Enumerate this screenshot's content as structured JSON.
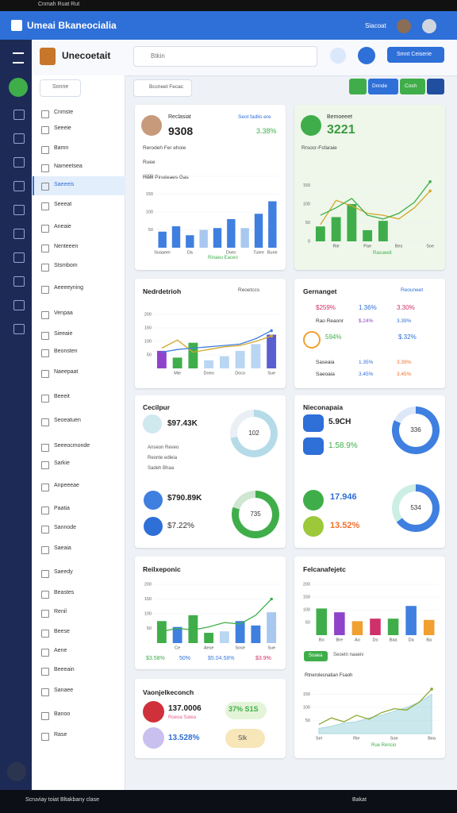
{
  "os_bar": {
    "title": "Cnmah Ruat Rut"
  },
  "app_header": {
    "title": "Umeai Bkaneocialia",
    "user": "Siacoat"
  },
  "toolbar": {
    "brand": "Unecoetait",
    "search": "Btkin",
    "button": "Smnt Ceiserie"
  },
  "sidebar": {
    "search": "Sonne",
    "items": [
      "Cnmste",
      "Seeeie",
      "Bamn",
      "Nameetsea",
      "Saeeeis",
      "Seeeat",
      "Aneaie",
      "Nenteeen",
      "Stsmbom",
      "Aeeeeyning",
      "Venpaa",
      "Sieeaie",
      "Beonsten",
      "Naeepaat",
      "Beeeit",
      "Seoeatuen",
      "Seeeocmonde",
      "Sarkie",
      "Anpeeeae",
      "Paatia",
      "Sannode",
      "Saeaia",
      "Saeedy",
      "Beastes",
      "Renil",
      "Beese",
      "Aene",
      "Beeeain",
      "Sanaee",
      "Banoo",
      "Rase"
    ]
  },
  "filter": "Bccrieet Fecac",
  "actions": [
    "Dnnde",
    "Cosh"
  ],
  "cards": [
    {
      "title": "Reclasiat",
      "link": "Seot fadlis ere",
      "value": "9308",
      "change": "3.38%",
      "subtitle": "Rerodeh Fer ehoie",
      "label": "Ruee",
      "chart": {
        "type": "bar",
        "title": "Ruei Pinuteaes Gas",
        "note": "Rinaeu Eaceo",
        "categories": [
          "Soaaeer",
          null,
          "Da",
          null,
          null,
          "Doec",
          null,
          "Tuiee",
          "Bune"
        ],
        "ylim": [
          0,
          200
        ],
        "yticks": [
          50,
          100,
          150,
          200
        ],
        "series": [
          {
            "type": "bar",
            "colors": [
              "#3f7fe0",
              "#3f7fe0",
              "#3f7fe0",
              "#a9c8f0",
              "#3f7fe0",
              "#3f7fe0",
              "#a9c8f0",
              "#3f7fe0",
              "#3f7fe0"
            ],
            "values": [
              45,
              60,
              35,
              50,
              55,
              80,
              55,
              95,
              130
            ]
          }
        ]
      }
    },
    {
      "title": "Bemoeeet",
      "value": "3221",
      "subtitle": "Rrsocr-Fsfaraie",
      "chart": {
        "type": "bar",
        "note": "Rasueeit",
        "categories": [
          null,
          "Rie",
          null,
          "Pae",
          null,
          "Bes",
          null,
          "Soe"
        ],
        "ylim": [
          0,
          200
        ],
        "yticks": [
          0,
          50,
          100,
          150
        ],
        "series": [
          {
            "type": "bar",
            "color": "#3fae4a",
            "values": [
              40,
              65,
              100,
              30,
              55,
              null,
              null,
              null
            ]
          },
          {
            "type": "line",
            "color": "#d4a72c",
            "values": [
              45,
              110,
              95,
              75,
              70,
              60,
              90,
              135
            ]
          },
          {
            "type": "line",
            "color": "#3fae4a",
            "values": [
              70,
              90,
              115,
              70,
              60,
              75,
              105,
              160
            ]
          }
        ]
      }
    },
    {
      "title": "Nedrdetrioh",
      "subtitle": "Reoetccs",
      "chart": {
        "type": "bar",
        "categories": [
          null,
          "Mie",
          null,
          "Doeo",
          null,
          "Doco",
          null,
          "Sue"
        ],
        "ylim": [
          0,
          200
        ],
        "yticks": [
          50,
          100,
          150,
          200
        ],
        "series": [
          {
            "type": "bar",
            "colors": [
              "#8e44c9",
              "#3fae4a",
              "#3fae4a",
              "#b9d6f2",
              "#b9d6f2",
              "#b9d6f2",
              "#b9d6f2",
              "#5a5fd0"
            ],
            "values": [
              65,
              40,
              95,
              30,
              45,
              65,
              90,
              125
            ]
          },
          {
            "type": "line",
            "color": "#d4a72c",
            "values": [
              75,
              105,
              60,
              70,
              80,
              85,
              100,
              120
            ]
          },
          {
            "type": "line",
            "color": "#3f7fe0",
            "values": [
              60,
              70,
              75,
              80,
              85,
              90,
              110,
              140
            ]
          }
        ]
      }
    },
    {
      "title": "Gernanget",
      "subtitle": "Reouneet",
      "rows": [
        [
          "$259%",
          "1.36%",
          "3.30%"
        ],
        [
          "Rao Reaonr",
          "$.24%",
          "3.39%"
        ],
        [
          "594%",
          "$.32%"
        ],
        [
          "Saseaia",
          "1.35%",
          "3.39%"
        ],
        [
          "Saeoaia",
          "3.45%",
          "3.45%"
        ]
      ]
    },
    {
      "title": "Cecilpur",
      "value1": "$97.43K",
      "lines": [
        "Anseon Reveo",
        "Reonte edleia",
        "Sadeh Bhaa"
      ],
      "value2": "$790.89K",
      "value3": "$7.22%",
      "donuts": [
        {
          "type": "pie",
          "center": "102",
          "values": [
            72,
            28
          ],
          "colors": [
            "#b6dbe8",
            "#e9eff4"
          ]
        },
        {
          "type": "pie",
          "center": "735",
          "values": [
            80,
            20
          ],
          "colors": [
            "#3fae4a",
            "#cfe6d0"
          ]
        }
      ]
    },
    {
      "title": "Nieconapaia",
      "value1": "5.9CH",
      "value2": "1.58.9%",
      "value3": "17.946",
      "value4": "13.52%",
      "donuts": [
        {
          "type": "pie",
          "center": "336",
          "values": [
            82,
            18
          ],
          "colors": [
            "#3f7fe0",
            "#dce8f7"
          ]
        },
        {
          "type": "pie",
          "center": "534",
          "values": [
            65,
            35
          ],
          "colors": [
            "#3f7fe0",
            "#cdeee5"
          ]
        }
      ]
    },
    {
      "title": "Reilxeponic",
      "footer": [
        "$3.58%",
        "50%",
        "$5.04.58%",
        "$3.9%"
      ],
      "chart": {
        "type": "bar",
        "categories": [
          null,
          "Ce",
          null,
          "Aese",
          null,
          "Sose",
          null,
          "Sue"
        ],
        "ylim": [
          0,
          200
        ],
        "yticks": [
          50,
          100,
          150,
          200
        ],
        "series": [
          {
            "type": "bar",
            "colors": [
              "#3fae4a",
              "#3f7fe0",
              "#3fae4a",
              "#3fae4a",
              "#b9d6f2",
              "#3f7fe0",
              "#3f7fe0",
              "#a9c8f0"
            ],
            "values": [
              75,
              55,
              95,
              35,
              40,
              75,
              60,
              105
            ]
          },
          {
            "type": "line",
            "color": "#3fae4a",
            "values": [
              40,
              50,
              45,
              55,
              70,
              65,
              95,
              150
            ]
          }
        ]
      }
    },
    {
      "title": "Felcanafejetc",
      "badge": "Soaea",
      "badge_note": "Seoetn naaeiv",
      "chart": {
        "type": "bar",
        "categories": [
          "Bo",
          "Bre",
          "Ao",
          "Do",
          "Baa",
          "Da",
          "Ba"
        ],
        "ylim": [
          0,
          200
        ],
        "yticks": [
          50,
          100,
          150,
          200
        ],
        "series": [
          {
            "type": "bar",
            "colors": [
              "#3fae4a",
              "#8e44c9",
              "#f0a030",
              "#d0306a",
              "#3fae4a",
              "#3f7fe0",
              "#f0a030"
            ],
            "values": [
              105,
              90,
              55,
              65,
              65,
              115,
              60
            ]
          }
        ]
      },
      "area": {
        "type": "area",
        "title": "Rtnerolesnatian Fsaoh",
        "note": "Rue Rencio",
        "categories": [
          "Sel",
          null,
          null,
          "Rie",
          null,
          null,
          "Soe",
          null,
          null,
          "Bea"
        ],
        "ylim": [
          0,
          200
        ],
        "yticks": [
          50,
          100,
          150
        ],
        "series": [
          {
            "type": "area",
            "color": "#a9d8e0",
            "values": [
              20,
              28,
              40,
              45,
              60,
              70,
              85,
              100,
              120,
              150
            ]
          },
          {
            "type": "line",
            "color": "#8aa830",
            "values": [
              35,
              60,
              45,
              70,
              55,
              80,
              95,
              90,
              120,
              170
            ]
          }
        ]
      }
    },
    {
      "title": "Vaonjelkeconch",
      "value1": "137.0006",
      "sub": "Roeoa Satea",
      "value2": "13.528%",
      "value3": "37% S1S",
      "value4": "Slk"
    }
  ],
  "taskbar": {
    "text": "Scruviay toiat Bltakbany clase",
    "right": "Bakat"
  }
}
